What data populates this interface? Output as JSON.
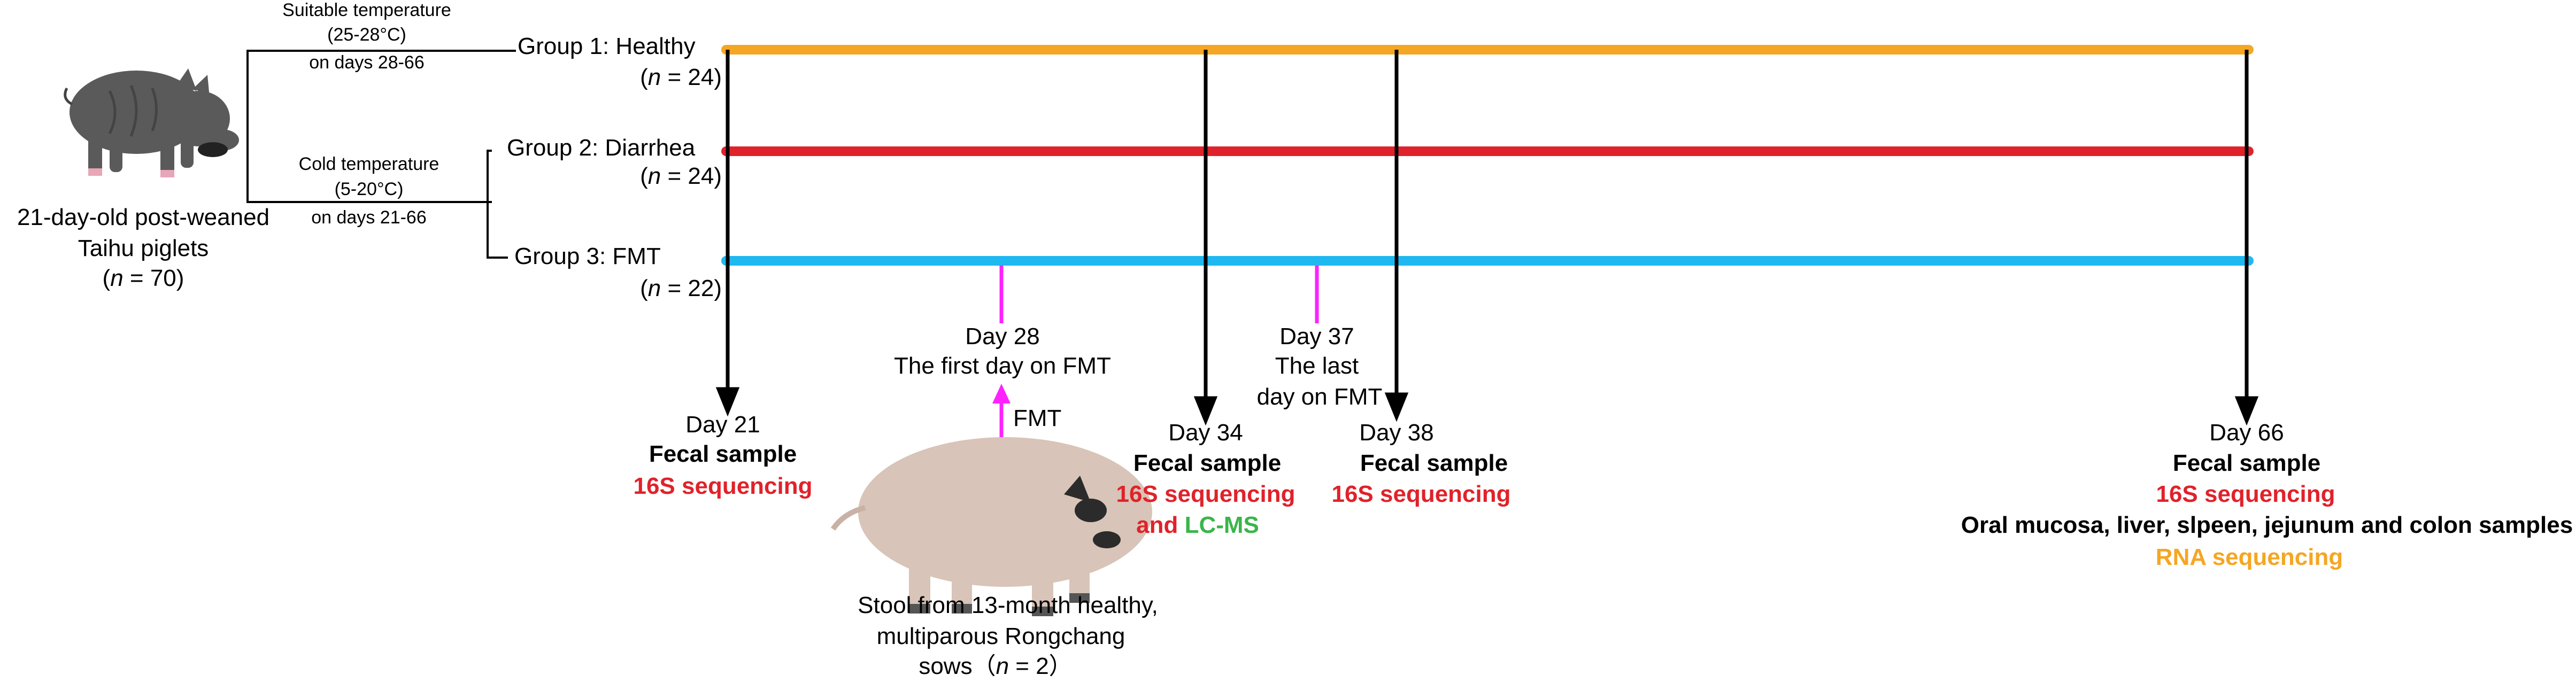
{
  "colors": {
    "healthy_line": "#f5a623",
    "diarrhea_line": "#e0222a",
    "fmt_line": "#1fb8f0",
    "fmt_marker": "#ff22ff",
    "sequencing_text": "#e0222a",
    "lcms_text": "#3ab54a",
    "rna_text": "#f5a623",
    "piglet_body": "#5a5a5a",
    "sow_body": "#d8c4b8"
  },
  "icons": {
    "piglet": "piglet-illustration",
    "sow": "sow-illustration"
  },
  "start": {
    "line1": "21-day-old post-weaned",
    "line2": "Taihu piglets",
    "n_open": "(",
    "n_label": "n",
    "n_value": " = 70)"
  },
  "conditions": {
    "suitable": {
      "line1": "Suitable temperature",
      "line2": "(25-28°C)",
      "line3": "on days 28-66"
    },
    "cold": {
      "line1": "Cold temperature",
      "line2": "(5-20°C)",
      "line3": "on days 21-66"
    }
  },
  "groups": [
    {
      "label": "Group 1: Healthy",
      "n_open": "(",
      "n_label": "n",
      "n_value": " = 24)"
    },
    {
      "label": "Group 2: Diarrhea",
      "n_open": "(",
      "n_label": "n",
      "n_value": " = 24)"
    },
    {
      "label": "Group 3: FMT",
      "n_open": "(",
      "n_label": "n",
      "n_value": " = 22)"
    }
  ],
  "fmt_events": {
    "first": {
      "line1": "Day 28",
      "line2": "The first day on FMT"
    },
    "last": {
      "line1": "Day 37",
      "line2": "The last",
      "line3": "day on FMT"
    },
    "arrow_label": "FMT"
  },
  "timepoints": {
    "day21": {
      "day": "Day 21",
      "sample": "Fecal sample",
      "assay": "16S sequencing"
    },
    "day34": {
      "day": "Day 34",
      "sample": "Fecal sample",
      "assay": "16S sequencing",
      "and": "and ",
      "assay2": "LC-MS"
    },
    "day38": {
      "day": "Day 38",
      "sample": "Fecal sample",
      "assay": "16S sequencing"
    },
    "day66": {
      "day": "Day 66",
      "sample": "Fecal sample",
      "assay": "16S sequencing",
      "tissues": "Oral mucosa, liver, slpeen, jejunum and colon samples",
      "assay2": "RNA sequencing"
    }
  },
  "donor": {
    "line1": "Stool from 13-month healthy,",
    "line2": "multiparous Rongchang",
    "line3_prefix": "sows（",
    "n_label": "n",
    "n_value": " = 2）"
  }
}
